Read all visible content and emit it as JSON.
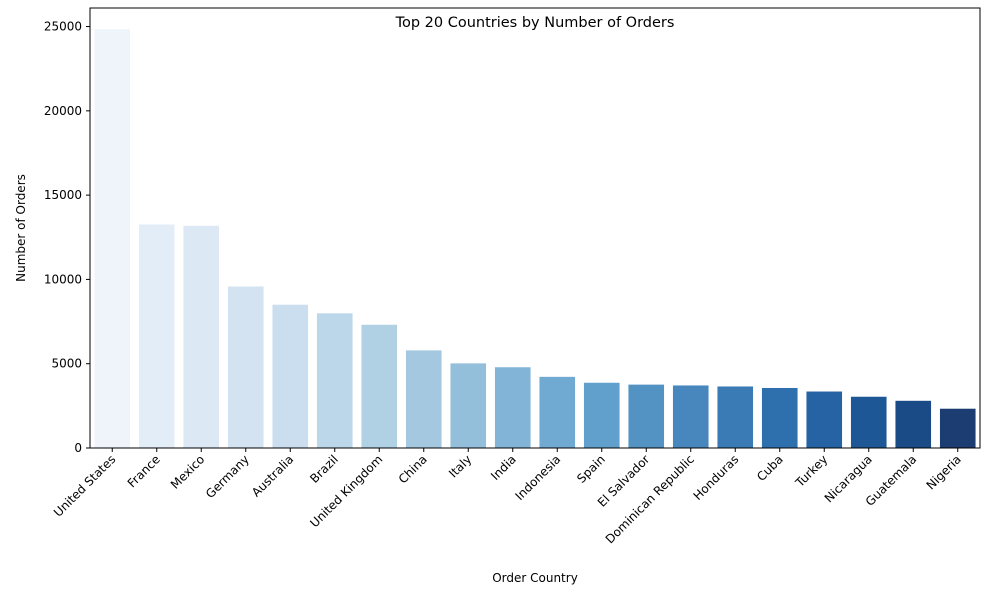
{
  "chart_data": {
    "type": "bar",
    "title": "Top 20 Countries by Number of Orders",
    "xlabel": "Order Country",
    "ylabel": "Number of Orders",
    "categories": [
      "United States",
      "France",
      "Mexico",
      "Germany",
      "Australia",
      "Brazil",
      "United Kingdom",
      "China",
      "Italy",
      "India",
      "Indonesia",
      "Spain",
      "El Salvador",
      "Dominican Republic",
      "Honduras",
      "Cuba",
      "Turkey",
      "Nicaragua",
      "Guatemala",
      "Nigeria"
    ],
    "values": [
      24840,
      13260,
      13180,
      9580,
      8500,
      7990,
      7310,
      5790,
      5020,
      4790,
      4220,
      3870,
      3760,
      3710,
      3650,
      3560,
      3350,
      3040,
      2800,
      2330
    ],
    "ylim": [
      0,
      26100
    ],
    "yticks": [
      0,
      5000,
      10000,
      15000,
      20000,
      25000
    ],
    "palette": "Blues",
    "colors": [
      "#eff4fb",
      "#e3edf8",
      "#dde8f5",
      "#d3e3f1",
      "#cbdeef",
      "#bdd7ea",
      "#b0d1e4",
      "#a3c8df",
      "#93bfdb",
      "#82b4d8",
      "#70a9d2",
      "#619fcc",
      "#5393c4",
      "#4787be",
      "#3a7bb6",
      "#2e6fae",
      "#2563a4",
      "#1e5796",
      "#1a4b87",
      "#1b3d72"
    ],
    "grid": false,
    "legend": "none"
  }
}
